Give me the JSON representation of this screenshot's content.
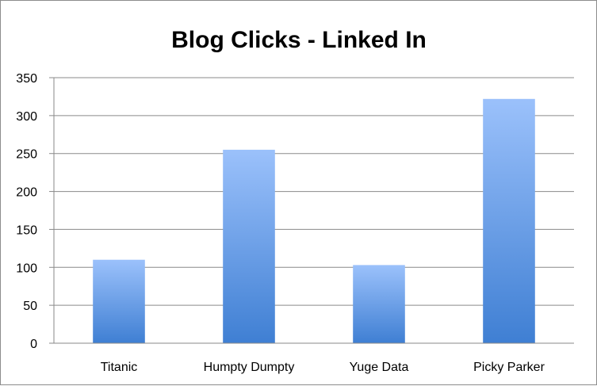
{
  "chart_data": {
    "type": "bar",
    "title": "Blog Clicks - Linked In",
    "xlabel": "",
    "ylabel": "",
    "categories": [
      "Titanic",
      "Humpty Dumpty",
      "Yuge Data",
      "Picky Parker"
    ],
    "values": [
      110,
      255,
      103,
      322
    ],
    "ylim": [
      0,
      350
    ],
    "yticks": [
      "0",
      "50",
      "100",
      "150",
      "200",
      "250",
      "300",
      "350"
    ],
    "grid": true,
    "legend": "none",
    "colors": {
      "bar_top": "#9bc1fb",
      "bar_bottom": "#3f7fd3",
      "grid": "#8a8a8a",
      "axis": "#8a8a8a",
      "frame": "#8c8c8c"
    }
  }
}
